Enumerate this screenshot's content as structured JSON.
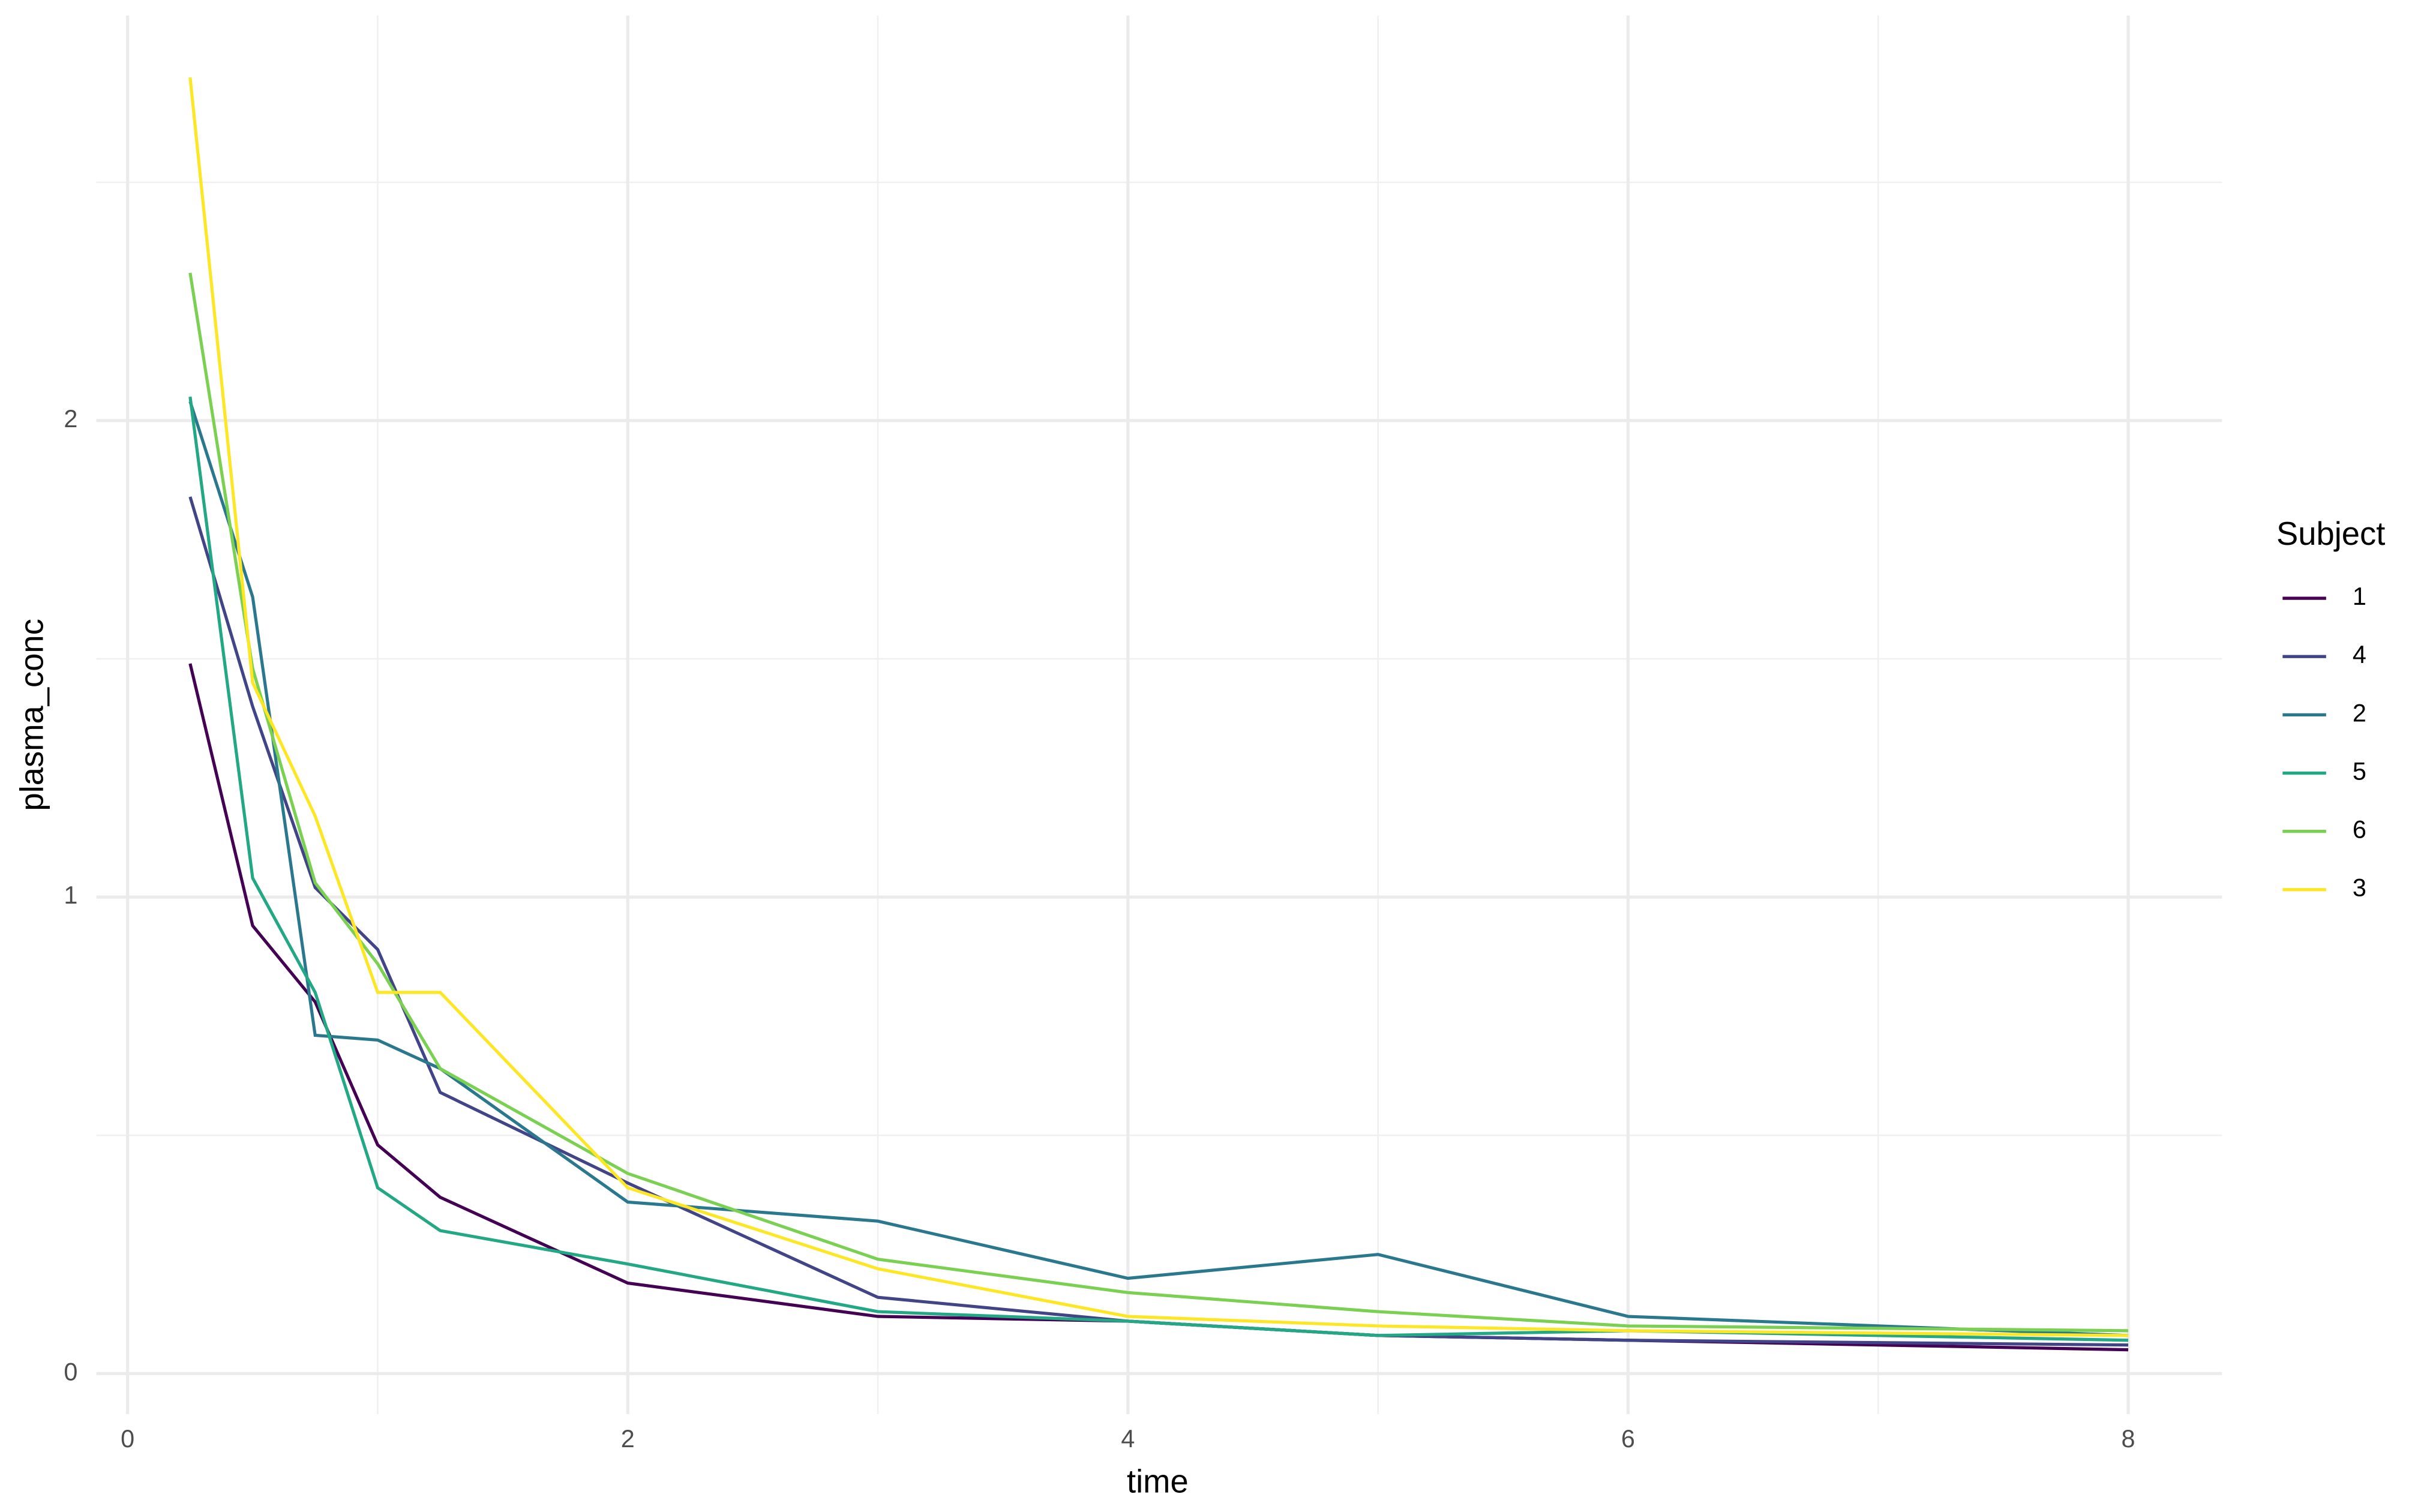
{
  "chart_data": {
    "type": "line",
    "x_label": "time",
    "y_label": "plasma_conc",
    "legend_title": "Subject",
    "x": [
      0.25,
      0.5,
      0.75,
      1,
      1.25,
      2,
      3,
      4,
      5,
      6,
      8
    ],
    "series": [
      {
        "name": "1",
        "color": "#440154",
        "values": [
          1.49,
          0.94,
          0.78,
          0.48,
          0.37,
          0.19,
          0.12,
          0.11,
          0.08,
          0.07,
          0.05
        ]
      },
      {
        "name": "4",
        "color": "#414487",
        "values": [
          1.84,
          1.4,
          1.02,
          0.89,
          0.59,
          0.4,
          0.16,
          0.11,
          0.08,
          0.07,
          0.06
        ]
      },
      {
        "name": "2",
        "color": "#2A788E",
        "values": [
          2.04,
          1.63,
          0.71,
          0.7,
          0.64,
          0.36,
          0.32,
          0.2,
          0.25,
          0.12,
          0.08
        ]
      },
      {
        "name": "5",
        "color": "#22A884",
        "values": [
          2.05,
          1.04,
          0.8,
          0.39,
          0.3,
          0.23,
          0.13,
          0.11,
          0.08,
          0.09,
          0.07
        ]
      },
      {
        "name": "6",
        "color": "#7AD151",
        "values": [
          2.31,
          1.48,
          1.03,
          0.86,
          0.64,
          0.42,
          0.24,
          0.17,
          0.13,
          0.1,
          0.09
        ]
      },
      {
        "name": "3",
        "color": "#FDE725",
        "values": [
          2.72,
          1.45,
          1.17,
          0.8,
          0.8,
          0.39,
          0.22,
          0.12,
          0.1,
          0.09,
          0.08
        ]
      }
    ],
    "xlim": [
      -0.125,
      8.375
    ],
    "ylim": [
      -0.085,
      2.85
    ],
    "xticks": [
      0,
      2,
      4,
      6,
      8
    ],
    "yticks": [
      0,
      1,
      2
    ],
    "x_minor_grid": [
      1,
      3,
      5,
      7
    ],
    "y_minor_grid": [
      0.5,
      1.5,
      2.5
    ],
    "grid": true,
    "legend_position": "right"
  }
}
